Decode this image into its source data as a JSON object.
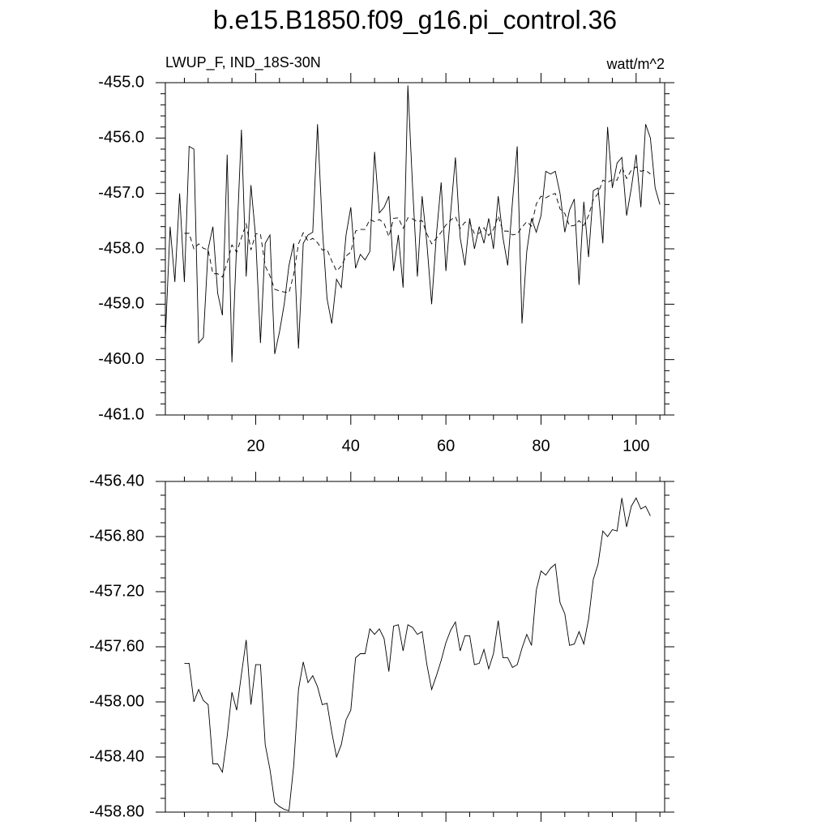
{
  "title": "b.e15.B1850.f09_g16.pi_control.36",
  "chart_data": [
    {
      "type": "line",
      "left_title": "LWUP_F, IND_18S-30N",
      "right_title": "watt/m^2",
      "xlim": [
        1,
        106
      ],
      "xticks": [
        20,
        40,
        60,
        80,
        100
      ],
      "xtick_labels": true,
      "ylim": [
        -461,
        -455
      ],
      "yticks": [
        {
          "value": -461,
          "label": "-461.0"
        },
        {
          "value": -460,
          "label": "-460.0"
        },
        {
          "value": -459,
          "label": "-459.0"
        },
        {
          "value": -458,
          "label": "-458.0"
        },
        {
          "value": -457,
          "label": "-457.0"
        },
        {
          "value": -456,
          "label": "-456.0"
        },
        {
          "value": -455,
          "label": "-455.0"
        }
      ],
      "series": [
        {
          "color": "#000000",
          "line_style": "solid",
          "x": [
            1,
            2,
            3,
            4,
            5,
            6,
            7,
            8,
            9,
            10,
            11,
            12,
            13,
            14,
            15,
            16,
            17,
            18,
            19,
            20,
            21,
            22,
            23,
            24,
            25,
            26,
            27,
            28,
            29,
            30,
            31,
            32,
            33,
            34,
            35,
            36,
            37,
            38,
            39,
            40,
            41,
            42,
            43,
            44,
            45,
            46,
            47,
            48,
            49,
            50,
            51,
            52,
            53,
            54,
            55,
            56,
            57,
            58,
            59,
            60,
            61,
            62,
            63,
            64,
            65,
            66,
            67,
            68,
            69,
            70,
            71,
            72,
            73,
            74,
            75,
            76,
            77,
            78,
            79,
            80,
            81,
            82,
            83,
            84,
            85,
            86,
            87,
            88,
            89,
            90,
            91,
            92,
            93,
            94,
            95,
            96,
            97,
            98,
            99,
            100,
            101,
            102,
            103,
            104,
            105
          ],
          "values": [
            -459.6,
            -457.6,
            -458.6,
            -457.0,
            -458.6,
            -456.15,
            -456.2,
            -459.7,
            -459.6,
            -458.0,
            -457.6,
            -458.8,
            -459.2,
            -456.3,
            -460.05,
            -457.9,
            -455.85,
            -458.5,
            -456.85,
            -457.8,
            -459.7,
            -457.9,
            -457.75,
            -459.9,
            -459.5,
            -459.0,
            -458.3,
            -457.9,
            -459.8,
            -457.9,
            -457.75,
            -457.7,
            -455.75,
            -457.6,
            -458.9,
            -459.35,
            -458.55,
            -458.7,
            -457.75,
            -457.25,
            -458.35,
            -458.1,
            -458.2,
            -458.05,
            -456.25,
            -457.35,
            -457.25,
            -457.05,
            -458.4,
            -457.75,
            -458.7,
            -455.05,
            -456.9,
            -458.5,
            -457.05,
            -457.9,
            -459.0,
            -457.75,
            -456.8,
            -458.4,
            -457.35,
            -456.35,
            -457.8,
            -458.3,
            -457.45,
            -458.0,
            -457.6,
            -457.9,
            -457.45,
            -458.0,
            -457.05,
            -457.8,
            -458.3,
            -457.15,
            -456.15,
            -459.35,
            -458.05,
            -457.45,
            -457.7,
            -457.4,
            -456.6,
            -456.65,
            -456.6,
            -457.0,
            -457.7,
            -457.3,
            -457.1,
            -458.65,
            -457.15,
            -458.15,
            -456.95,
            -456.9,
            -457.9,
            -455.8,
            -456.9,
            -456.45,
            -456.35,
            -457.4,
            -456.9,
            -456.3,
            -457.25,
            -455.75,
            -456.0,
            -456.9,
            -457.2
          ]
        },
        {
          "color": "#000000",
          "line_style": "dashed",
          "x": [
            5,
            6,
            7,
            8,
            9,
            10,
            11,
            12,
            13,
            14,
            15,
            16,
            17,
            18,
            19,
            20,
            21,
            22,
            23,
            24,
            25,
            26,
            27,
            28,
            29,
            30,
            31,
            32,
            33,
            34,
            35,
            36,
            37,
            38,
            39,
            40,
            41,
            42,
            43,
            44,
            45,
            46,
            47,
            48,
            49,
            50,
            51,
            52,
            53,
            54,
            55,
            56,
            57,
            58,
            59,
            60,
            61,
            62,
            63,
            64,
            65,
            66,
            67,
            68,
            69,
            70,
            71,
            72,
            73,
            74,
            75,
            76,
            77,
            78,
            79,
            80,
            81,
            82,
            83,
            84,
            85,
            86,
            87,
            88,
            89,
            90,
            91,
            92,
            93,
            94,
            95,
            96,
            97,
            98,
            99,
            100,
            101,
            102,
            103
          ],
          "values": [
            -457.72,
            -457.72,
            -458.0,
            -457.91,
            -457.99,
            -458.02,
            -458.45,
            -458.45,
            -458.51,
            -458.25,
            -457.93,
            -458.06,
            -457.8,
            -457.55,
            -458.02,
            -457.73,
            -457.73,
            -458.31,
            -458.49,
            -458.73,
            -458.76,
            -458.78,
            -458.79,
            -458.46,
            -457.91,
            -457.71,
            -457.86,
            -457.81,
            -457.89,
            -458.02,
            -458.01,
            -458.22,
            -458.4,
            -458.31,
            -458.13,
            -458.06,
            -457.68,
            -457.65,
            -457.65,
            -457.47,
            -457.51,
            -457.47,
            -457.54,
            -457.78,
            -457.45,
            -457.44,
            -457.63,
            -457.44,
            -457.46,
            -457.51,
            -457.49,
            -457.73,
            -457.91,
            -457.81,
            -457.7,
            -457.57,
            -457.48,
            -457.42,
            -457.63,
            -457.52,
            -457.52,
            -457.73,
            -457.72,
            -457.62,
            -457.76,
            -457.65,
            -457.41,
            -457.68,
            -457.68,
            -457.75,
            -457.73,
            -457.61,
            -457.51,
            -457.59,
            -457.19,
            -457.05,
            -457.08,
            -457.03,
            -457.0,
            -457.28,
            -457.36,
            -457.59,
            -457.58,
            -457.49,
            -457.58,
            -457.4,
            -457.11,
            -457.0,
            -456.76,
            -456.8,
            -456.75,
            -456.76,
            -456.52,
            -456.73,
            -456.58,
            -456.52,
            -456.6,
            -456.58,
            -456.65
          ]
        }
      ]
    },
    {
      "type": "line",
      "xlim": [
        1,
        106
      ],
      "xticks": [
        20,
        40,
        60,
        80,
        100
      ],
      "xtick_labels": false,
      "ylim": [
        -458.8,
        -456.4
      ],
      "yticks": [
        {
          "value": -458.8,
          "label": "-458.80"
        },
        {
          "value": -458.4,
          "label": "-458.40"
        },
        {
          "value": -458.0,
          "label": "-458.00"
        },
        {
          "value": -457.6,
          "label": "-457.60"
        },
        {
          "value": -457.2,
          "label": "-457.20"
        },
        {
          "value": -456.8,
          "label": "-456.80"
        },
        {
          "value": -456.4,
          "label": "-456.40"
        }
      ],
      "series": [
        {
          "color": "#000000",
          "line_style": "solid",
          "x": [
            5,
            6,
            7,
            8,
            9,
            10,
            11,
            12,
            13,
            14,
            15,
            16,
            17,
            18,
            19,
            20,
            21,
            22,
            23,
            24,
            25,
            26,
            27,
            28,
            29,
            30,
            31,
            32,
            33,
            34,
            35,
            36,
            37,
            38,
            39,
            40,
            41,
            42,
            43,
            44,
            45,
            46,
            47,
            48,
            49,
            50,
            51,
            52,
            53,
            54,
            55,
            56,
            57,
            58,
            59,
            60,
            61,
            62,
            63,
            64,
            65,
            66,
            67,
            68,
            69,
            70,
            71,
            72,
            73,
            74,
            75,
            76,
            77,
            78,
            79,
            80,
            81,
            82,
            83,
            84,
            85,
            86,
            87,
            88,
            89,
            90,
            91,
            92,
            93,
            94,
            95,
            96,
            97,
            98,
            99,
            100,
            101,
            102,
            103
          ],
          "values": [
            -457.72,
            -457.72,
            -458.0,
            -457.91,
            -457.99,
            -458.02,
            -458.45,
            -458.45,
            -458.51,
            -458.25,
            -457.93,
            -458.06,
            -457.8,
            -457.55,
            -458.02,
            -457.73,
            -457.73,
            -458.31,
            -458.49,
            -458.73,
            -458.76,
            -458.78,
            -458.79,
            -458.46,
            -457.91,
            -457.71,
            -457.86,
            -457.81,
            -457.89,
            -458.02,
            -458.01,
            -458.22,
            -458.4,
            -458.31,
            -458.13,
            -458.06,
            -457.68,
            -457.65,
            -457.65,
            -457.47,
            -457.51,
            -457.47,
            -457.54,
            -457.78,
            -457.45,
            -457.44,
            -457.63,
            -457.44,
            -457.46,
            -457.51,
            -457.49,
            -457.73,
            -457.91,
            -457.81,
            -457.7,
            -457.57,
            -457.48,
            -457.42,
            -457.63,
            -457.52,
            -457.52,
            -457.73,
            -457.72,
            -457.62,
            -457.76,
            -457.65,
            -457.41,
            -457.68,
            -457.68,
            -457.75,
            -457.73,
            -457.61,
            -457.51,
            -457.59,
            -457.19,
            -457.05,
            -457.08,
            -457.03,
            -457.0,
            -457.28,
            -457.36,
            -457.59,
            -457.58,
            -457.49,
            -457.58,
            -457.4,
            -457.11,
            -457.0,
            -456.76,
            -456.8,
            -456.75,
            -456.76,
            -456.52,
            -456.73,
            -456.58,
            -456.52,
            -456.6,
            -456.58,
            -456.65
          ]
        }
      ]
    }
  ]
}
